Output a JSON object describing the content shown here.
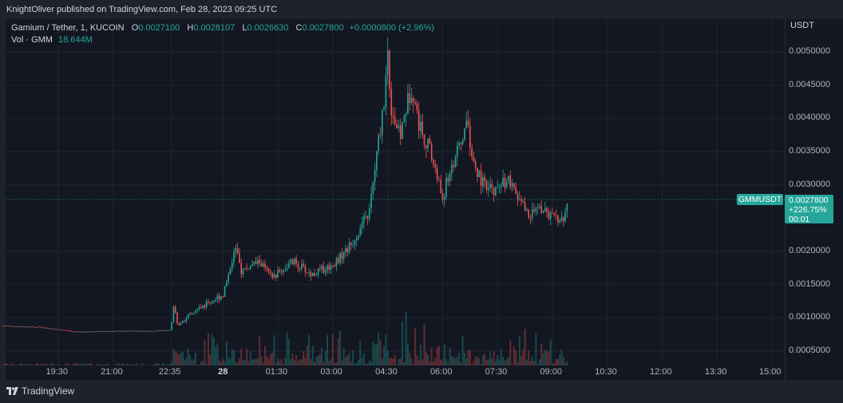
{
  "header": {
    "published_by": "KnightOliver published on TradingView.com, Feb 28, 2023 09:25 UTC"
  },
  "legend": {
    "symbol": "Gamium / Tether, 1, KUCOIN",
    "open_key": "O",
    "open_val": "0.0027100",
    "high_key": "H",
    "high_val": "0.0028107",
    "low_key": "L",
    "low_val": "0.0026630",
    "close_key": "C",
    "close_val": "0.0027800",
    "change": "+0.0000800 (+2.96%)",
    "vol_label": "Vol · GMM",
    "vol_val": "18.644M"
  },
  "price_axis": {
    "currency": "USDT",
    "ticks": [
      "0.0050000",
      "0.0045000",
      "0.0040000",
      "0.0035000",
      "0.0030000",
      "0.0020000",
      "0.0015000",
      "0.0010000",
      "0.0005000"
    ]
  },
  "price_tag": {
    "symbol": "GMMUSDT",
    "price": "0.0027800",
    "change_pct": "+226.75%",
    "countdown": "00:01"
  },
  "time_axis": {
    "ticks": [
      "19:30",
      "21:00",
      "22:35",
      "28",
      "01:30",
      "03:00",
      "04:30",
      "06:00",
      "07:30",
      "09:00",
      "10:30",
      "12:00",
      "13:30",
      "15:00"
    ]
  },
  "brand": {
    "name": "TradingView",
    "logo_icon": "tradingview-logo-icon"
  },
  "colors": {
    "up": "#26a69a",
    "down": "#ef5350",
    "background": "#131722",
    "grid": "#1f2430"
  },
  "chart_data": {
    "type": "candlestick",
    "title": "Gamium / Tether, 1, KUCOIN",
    "ylabel": "USDT",
    "ylim": [
      0.0002,
      0.0054
    ],
    "current_price": 0.00278,
    "price_path": [
      {
        "t": "18:00",
        "p": 0.00088
      },
      {
        "t": "19:00",
        "p": 0.00086
      },
      {
        "t": "20:00",
        "p": 0.00079
      },
      {
        "t": "21:00",
        "p": 0.0008
      },
      {
        "t": "22:00",
        "p": 0.0008
      },
      {
        "t": "22:35",
        "p": 0.00082
      },
      {
        "t": "22:38",
        "p": 0.00125
      },
      {
        "t": "22:45",
        "p": 0.0009
      },
      {
        "t": "23:30",
        "p": 0.0012
      },
      {
        "t": "00:00",
        "p": 0.00135
      },
      {
        "t": "00:20",
        "p": 0.00205
      },
      {
        "t": "00:30",
        "p": 0.0017
      },
      {
        "t": "01:00",
        "p": 0.00185
      },
      {
        "t": "01:20",
        "p": 0.0016
      },
      {
        "t": "01:55",
        "p": 0.00185
      },
      {
        "t": "02:25",
        "p": 0.00165
      },
      {
        "t": "03:00",
        "p": 0.0018
      },
      {
        "t": "03:30",
        "p": 0.0021
      },
      {
        "t": "04:00",
        "p": 0.0026
      },
      {
        "t": "04:10",
        "p": 0.0033
      },
      {
        "t": "04:25",
        "p": 0.00435
      },
      {
        "t": "04:30",
        "p": 0.005
      },
      {
        "t": "04:35",
        "p": 0.0042
      },
      {
        "t": "04:50",
        "p": 0.0037
      },
      {
        "t": "05:00",
        "p": 0.00415
      },
      {
        "t": "05:10",
        "p": 0.0045
      },
      {
        "t": "05:20",
        "p": 0.00395
      },
      {
        "t": "05:40",
        "p": 0.0035
      },
      {
        "t": "06:00",
        "p": 0.0028
      },
      {
        "t": "06:15",
        "p": 0.0033
      },
      {
        "t": "06:30",
        "p": 0.0036
      },
      {
        "t": "06:40",
        "p": 0.004
      },
      {
        "t": "06:50",
        "p": 0.0033
      },
      {
        "t": "07:10",
        "p": 0.00295
      },
      {
        "t": "07:30",
        "p": 0.0029
      },
      {
        "t": "07:45",
        "p": 0.0031
      },
      {
        "t": "08:00",
        "p": 0.00285
      },
      {
        "t": "08:20",
        "p": 0.00255
      },
      {
        "t": "08:40",
        "p": 0.00265
      },
      {
        "t": "09:00",
        "p": 0.0025
      },
      {
        "t": "09:20",
        "p": 0.00247
      },
      {
        "t": "09:25",
        "p": 0.00278
      }
    ]
  }
}
